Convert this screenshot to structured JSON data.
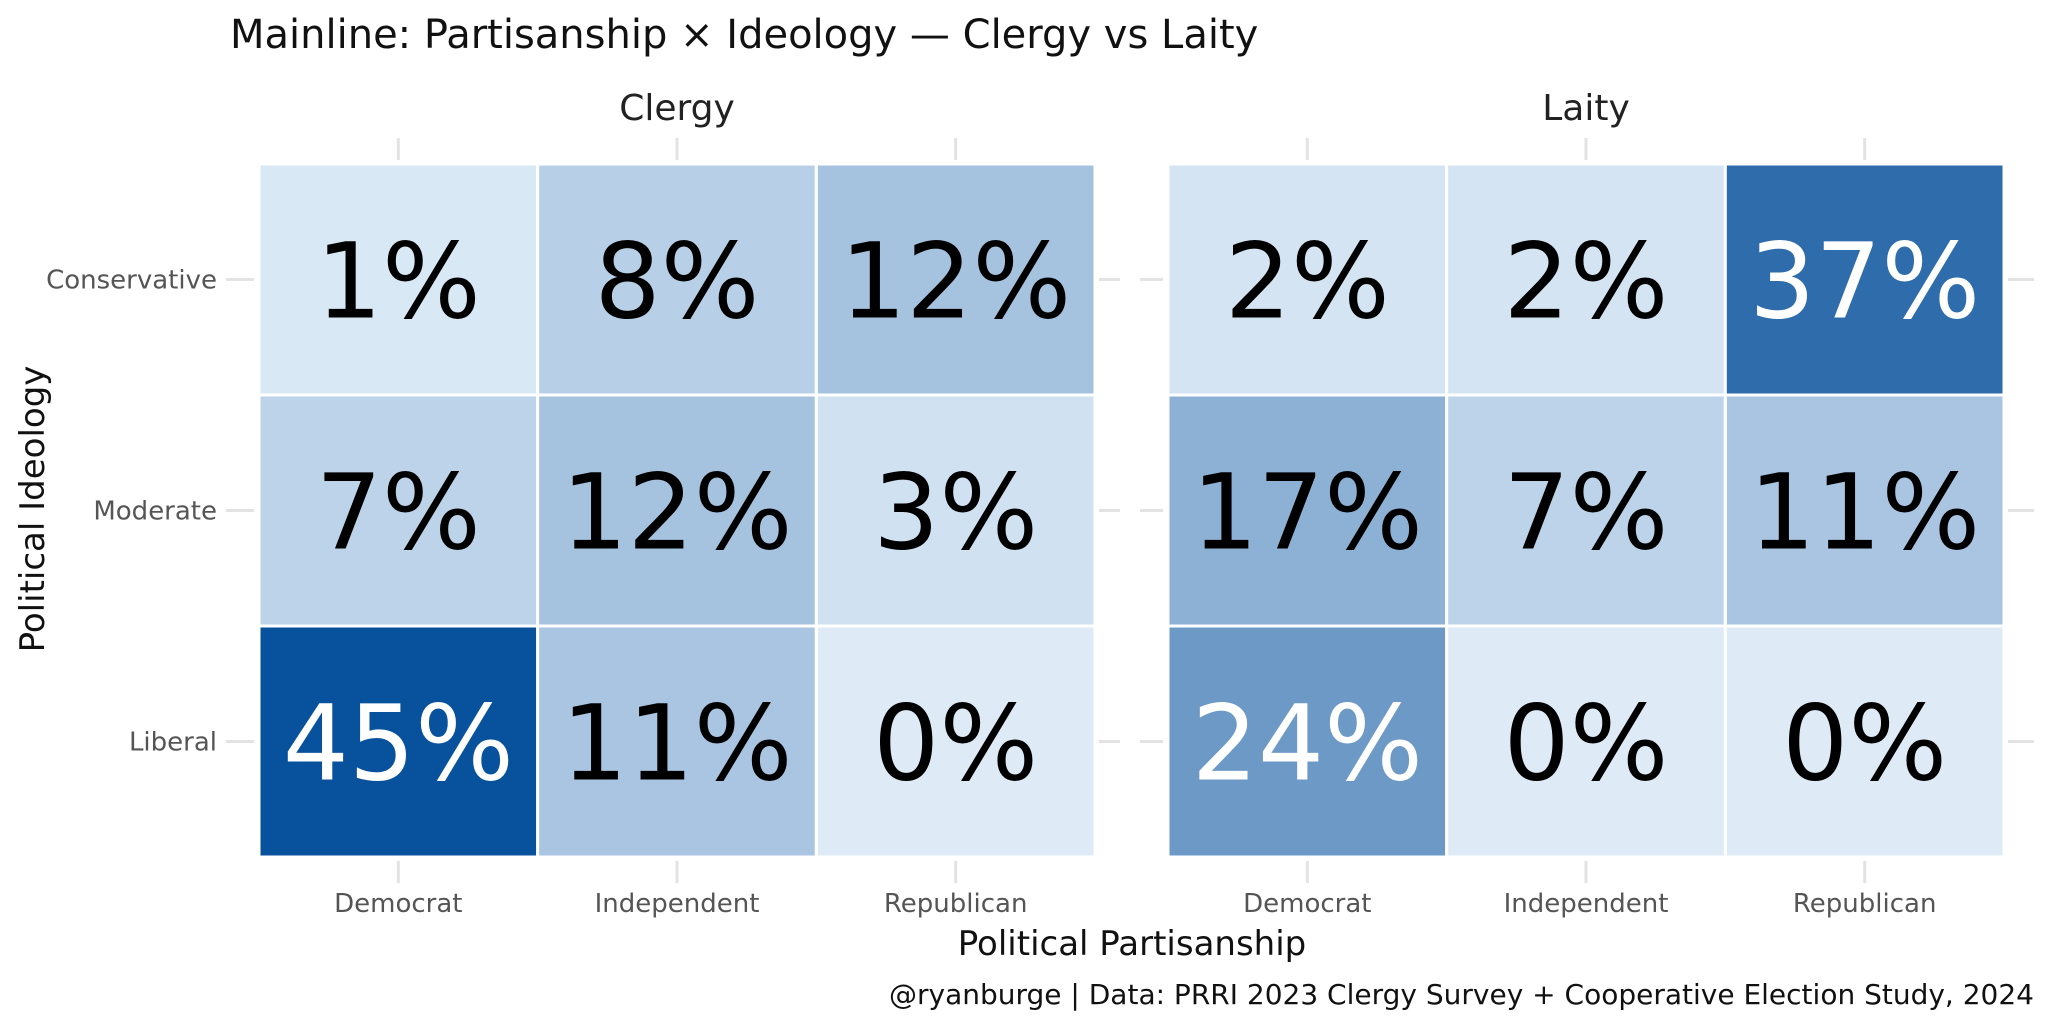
{
  "chart_data": {
    "type": "heatmap",
    "title": "Mainline: Partisanship × Ideology — Clergy vs Laity",
    "xlabel": "Political Partisanship",
    "ylabel": "Political Ideology",
    "caption": "@ryanburge | Data: PRRI 2023 Clergy Survey + Cooperative Election Study, 2024",
    "x_categories": [
      "Democrat",
      "Independent",
      "Republican"
    ],
    "y_categories": [
      "Conservative",
      "Moderate",
      "Liberal"
    ],
    "facets": [
      {
        "name": "Clergy",
        "values": [
          [
            1,
            8,
            12
          ],
          [
            7,
            12,
            3
          ],
          [
            45,
            11,
            0
          ]
        ],
        "labels": [
          [
            "1%",
            "8%",
            "12%"
          ],
          [
            "7%",
            "12%",
            "3%"
          ],
          [
            "45%",
            "11%",
            "0%"
          ]
        ]
      },
      {
        "name": "Laity",
        "values": [
          [
            2,
            2,
            37
          ],
          [
            17,
            7,
            11
          ],
          [
            24,
            0,
            0
          ]
        ],
        "labels": [
          [
            "2%",
            "2%",
            "37%"
          ],
          [
            "17%",
            "7%",
            "11%"
          ],
          [
            "24%",
            "0%",
            "0%"
          ]
        ]
      }
    ],
    "value_range": [
      0,
      45
    ],
    "color_low": "#deebf7",
    "color_high": "#08519c",
    "grid": true,
    "legend": "none"
  }
}
